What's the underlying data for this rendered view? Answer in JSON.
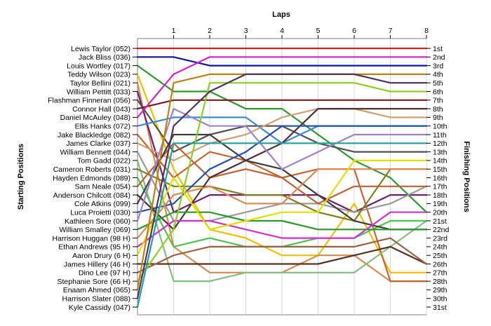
{
  "chart_data": {
    "type": "line",
    "title": "",
    "xlabel": "Laps",
    "ylabel": "Starting Positions",
    "y2label": "Finishing Positions",
    "x": [
      0,
      1,
      2,
      3,
      4,
      5,
      6,
      7,
      8
    ],
    "x_tick_labels": [
      "1",
      "2",
      "3",
      "4",
      "5",
      "6",
      "7",
      "8"
    ],
    "ylim": [
      1,
      31
    ],
    "y_inverted": true,
    "grid": true,
    "starting_labels": [
      "Lewis Taylor (052)",
      "Jack Bliss (036)",
      "Louis Wortley (017)",
      "Teddy Wilson (023)",
      "Taylor Bellini (021)",
      "William Pettitt (033)",
      "Flashman Finneran (056)",
      "Connor Hall (043)",
      "Daniel McAuley (048)",
      "Ellis Hanks (072)",
      "Jake Blackledge (082)",
      "James Clarke (037)",
      "William Bennett (044)",
      "Tom Gadd (022)",
      "Cameron Roberts (031)",
      "Hayden Edmonds (089)",
      "Sam Neale (054)",
      "Anderson Chilcott (084)",
      "Cole Atkins (099)",
      "Luca Proietti (030)",
      "Kathleen Sore (060)",
      "William Smalley (069)",
      "Harrison Huggan (98 H)",
      "Ethan Andrews (95 H)",
      "Aaron Drury (6 H)",
      "James Hillery (46 H)",
      "Dino Lee (97 H)",
      "Stephanie Sore (66 H)",
      "Enaam Ahmed (065)",
      "Harrison Slater (088)",
      "Kyle Cassidy (047)"
    ],
    "finishing_labels": [
      "1st",
      "2nd",
      "3rd",
      "4th",
      "5th",
      "6th",
      "7th",
      "8th",
      "9th",
      "10th",
      "11th",
      "12th",
      "13th",
      "14th",
      "15th",
      "16th",
      "17th",
      "18th",
      "19th",
      "20th",
      "21st",
      "22nd",
      "23rd",
      "24th",
      "25th",
      "26th",
      "27th",
      "28th",
      "29th",
      "30th",
      "31st"
    ],
    "series": [
      {
        "color": "#d62020",
        "values": [
          1,
          1,
          1,
          1,
          1,
          1,
          1,
          1,
          1
        ]
      },
      {
        "color": "#1414a0",
        "values": [
          2,
          2,
          3,
          3,
          3,
          3,
          3,
          3,
          3
        ]
      },
      {
        "color": "#2a9a2a",
        "values": [
          3,
          6,
          6,
          8,
          8,
          11,
          14,
          16,
          20
        ]
      },
      {
        "color": "#f0c000",
        "values": [
          4,
          15,
          22,
          23,
          25,
          25,
          19,
          27,
          27
        ]
      },
      {
        "color": "#d98a50",
        "values": [
          5,
          24,
          27,
          27,
          27,
          25,
          25,
          28,
          28
        ]
      },
      {
        "color": "#702070",
        "values": [
          6,
          20,
          18,
          18,
          18,
          18,
          20,
          18,
          18
        ]
      },
      {
        "color": "#505050",
        "values": [
          7,
          13,
          11,
          10,
          10,
          12,
          13,
          13,
          13
        ]
      },
      {
        "color": "#7a1a1a",
        "values": [
          8,
          7,
          7,
          7,
          7,
          7,
          7,
          7,
          7
        ]
      },
      {
        "color": "#d020d0",
        "values": [
          9,
          4,
          2,
          2,
          2,
          2,
          2,
          2,
          2
        ]
      },
      {
        "color": "#3a8ad8",
        "values": [
          10,
          9,
          9,
          9,
          12,
          10,
          10,
          10,
          10
        ]
      },
      {
        "color": "#c86430",
        "values": [
          11,
          16,
          13,
          14,
          16,
          15,
          15,
          28,
          28
        ]
      },
      {
        "color": "#d0a070",
        "values": [
          12,
          14,
          12,
          11,
          9,
          8,
          8,
          9,
          9
        ]
      },
      {
        "color": "#9a9a9a",
        "values": [
          13,
          21,
          21,
          20,
          19,
          19,
          20,
          19,
          17
        ]
      },
      {
        "color": "#80c080",
        "values": [
          14,
          28,
          28,
          27,
          27,
          27,
          27,
          24,
          21
        ]
      },
      {
        "color": "#808020",
        "values": [
          15,
          17,
          17,
          18,
          18,
          20,
          21,
          15,
          15
        ]
      },
      {
        "color": "#50c050",
        "values": [
          16,
          24,
          23,
          24,
          24,
          23,
          23,
          21,
          21
        ]
      },
      {
        "color": "#c06030",
        "values": [
          17,
          12,
          16,
          15,
          16,
          19,
          17,
          17,
          17
        ]
      },
      {
        "color": "#503030",
        "values": [
          18,
          22,
          16,
          14,
          12,
          8,
          8,
          8,
          8
        ]
      },
      {
        "color": "#3c3c3c",
        "values": [
          19,
          11,
          11,
          14,
          15,
          18,
          21,
          22,
          22
        ]
      },
      {
        "color": "#2050b0",
        "values": [
          20,
          19,
          15,
          13,
          10,
          10,
          10,
          10,
          10
        ]
      },
      {
        "color": "#a080d0",
        "values": [
          21,
          8,
          10,
          10,
          15,
          13,
          11,
          11,
          11
        ]
      },
      {
        "color": "#2a9a2a",
        "values": [
          22,
          20,
          20,
          21,
          21,
          22,
          22,
          22,
          22
        ]
      },
      {
        "color": "#e08850",
        "values": [
          23,
          18,
          17,
          19,
          19,
          15,
          15,
          15,
          15
        ]
      },
      {
        "color": "#d030d0",
        "values": [
          24,
          21,
          21,
          22,
          23,
          23,
          23,
          20,
          20
        ]
      },
      {
        "color": "#e0e000",
        "values": [
          25,
          16,
          22,
          21,
          20,
          20,
          14,
          14,
          14
        ]
      },
      {
        "color": "#5a3020",
        "values": [
          26,
          26,
          26,
          26,
          26,
          26,
          25,
          24,
          26
        ]
      },
      {
        "color": "#a06040",
        "values": [
          27,
          25,
          24,
          24,
          24,
          24,
          24,
          23,
          26
        ]
      },
      {
        "color": "#8ad020",
        "values": [
          28,
          22,
          5,
          5,
          5,
          5,
          5,
          6,
          6
        ]
      },
      {
        "color": "#c08010",
        "values": [
          29,
          5,
          4,
          4,
          4,
          4,
          4,
          4,
          4
        ]
      },
      {
        "color": "#503060",
        "values": [
          30,
          10,
          6,
          4,
          4,
          4,
          4,
          5,
          5
        ]
      },
      {
        "color": "#20a0a0",
        "values": [
          31,
          12,
          12,
          12,
          12,
          12,
          12,
          12,
          12
        ]
      }
    ]
  }
}
